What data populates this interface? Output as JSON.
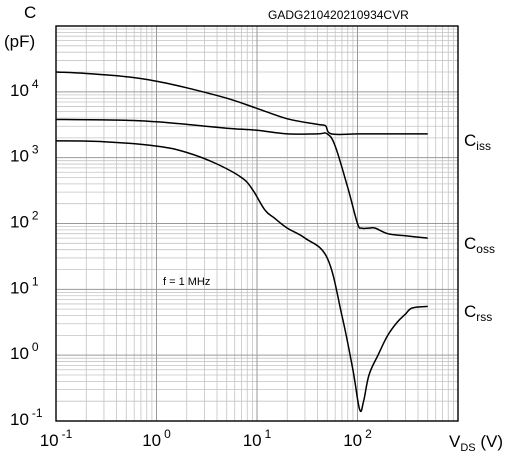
{
  "chart_data": {
    "type": "line",
    "code": "GADG210420210934CVR",
    "y_axis": {
      "symbol": "C",
      "unit": "(pF)",
      "scale": "log",
      "ylim": [
        0.1,
        100000
      ]
    },
    "x_axis": {
      "symbol": "V",
      "subscript": "DS",
      "unit": "(V)",
      "scale": "log",
      "xlim": [
        0.1,
        1000
      ]
    },
    "x_ticks": [
      {
        "value": 0.1,
        "base": "10",
        "exp": "-1"
      },
      {
        "value": 1,
        "base": "10",
        "exp": "0"
      },
      {
        "value": 10,
        "base": "10",
        "exp": "1"
      },
      {
        "value": 100,
        "base": "10",
        "exp": "2"
      }
    ],
    "y_ticks": [
      {
        "value": 0.1,
        "base": "10",
        "exp": "-1"
      },
      {
        "value": 1,
        "base": "10",
        "exp": "0"
      },
      {
        "value": 10,
        "base": "10",
        "exp": "1"
      },
      {
        "value": 100,
        "base": "10",
        "exp": "2"
      },
      {
        "value": 1000,
        "base": "10",
        "exp": "3"
      },
      {
        "value": 10000,
        "base": "10",
        "exp": "4"
      }
    ],
    "annotation": "f = 1 MHz",
    "grid": true,
    "series": [
      {
        "name": "C",
        "name_sub": "iss",
        "color": "#000000",
        "x": [
          0.1,
          0.2,
          0.5,
          1,
          2,
          5,
          10,
          20,
          40,
          48,
          55,
          100,
          200,
          500
        ],
        "y": [
          20000,
          19000,
          17000,
          14500,
          11500,
          8000,
          5600,
          3900,
          3200,
          3050,
          2300,
          2300,
          2300,
          2300
        ]
      },
      {
        "name": "C",
        "name_sub": "oss",
        "color": "#000000",
        "x": [
          0.1,
          0.5,
          1,
          2,
          5,
          10,
          20,
          40,
          50,
          60,
          80,
          100,
          110,
          130,
          150,
          200,
          300,
          500
        ],
        "y": [
          3800,
          3700,
          3500,
          3200,
          2800,
          2600,
          2300,
          2300,
          2300,
          1500,
          350,
          100,
          85,
          85,
          85,
          70,
          65,
          60
        ]
      },
      {
        "name": "C",
        "name_sub": "rss",
        "color": "#000000",
        "x": [
          0.1,
          0.3,
          1,
          2,
          4,
          7,
          9,
          12,
          15,
          20,
          30,
          50,
          70,
          90,
          105,
          115,
          130,
          160,
          200,
          250,
          300,
          350,
          500
        ],
        "y": [
          1800,
          1750,
          1500,
          1200,
          800,
          500,
          330,
          160,
          120,
          85,
          60,
          30,
          4,
          0.6,
          0.15,
          0.2,
          0.5,
          1,
          2,
          3.2,
          4.2,
          5.2,
          5.5
        ]
      }
    ]
  }
}
